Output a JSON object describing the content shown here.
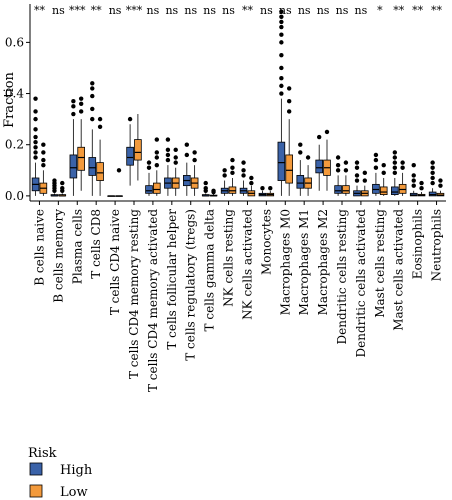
{
  "chart_data": {
    "type": "boxplot",
    "ylabel": "Fraction",
    "ylim": [
      -0.02,
      0.75
    ],
    "yticks": [
      0.0,
      0.2,
      0.4,
      0.6
    ],
    "ytick_labels": [
      "0.0",
      "0.2",
      "0.4",
      "0.6"
    ],
    "legend": {
      "title": "Risk",
      "placement": "bottom-left",
      "items": [
        {
          "label": "High",
          "color": "#3a62a8"
        },
        {
          "label": "Low",
          "color": "#f39a3c"
        }
      ]
    },
    "groups": [
      {
        "name": "High",
        "color": "#3a62a8"
      },
      {
        "name": "Low",
        "color": "#f39a3c"
      }
    ],
    "categories": [
      {
        "label": "B cells naive",
        "sig": "**",
        "high": {
          "min": 0.0,
          "q1": 0.02,
          "median": 0.045,
          "q3": 0.07,
          "max": 0.13,
          "outliers": [
            0.15,
            0.17,
            0.19,
            0.21,
            0.23,
            0.26,
            0.3,
            0.33,
            0.38
          ]
        },
        "low": {
          "min": 0.0,
          "q1": 0.01,
          "median": 0.03,
          "q3": 0.05,
          "max": 0.1,
          "outliers": [
            0.12,
            0.14,
            0.17,
            0.2
          ]
        }
      },
      {
        "label": "B cells memory",
        "sig": "ns",
        "high": {
          "min": 0.0,
          "q1": 0.0,
          "median": 0.0,
          "q3": 0.005,
          "max": 0.01,
          "outliers": [
            0.02,
            0.03,
            0.04,
            0.05,
            0.06
          ]
        },
        "low": {
          "min": 0.0,
          "q1": 0.0,
          "median": 0.0,
          "q3": 0.005,
          "max": 0.01,
          "outliers": [
            0.02,
            0.03,
            0.05
          ]
        }
      },
      {
        "label": "Plasma cells",
        "sig": "***",
        "high": {
          "min": 0.0,
          "q1": 0.07,
          "median": 0.11,
          "q3": 0.16,
          "max": 0.3,
          "outliers": [
            0.32,
            0.35,
            0.37
          ]
        },
        "low": {
          "min": 0.02,
          "q1": 0.1,
          "median": 0.15,
          "q3": 0.19,
          "max": 0.3,
          "outliers": [
            0.33,
            0.36,
            0.38
          ]
        }
      },
      {
        "label": "T cells CD8",
        "sig": "**",
        "high": {
          "min": 0.0,
          "q1": 0.08,
          "median": 0.11,
          "q3": 0.15,
          "max": 0.26,
          "outliers": [
            0.3,
            0.34,
            0.39,
            0.42,
            0.44
          ]
        },
        "low": {
          "min": 0.0,
          "q1": 0.06,
          "median": 0.09,
          "q3": 0.13,
          "max": 0.22,
          "outliers": [
            0.27,
            0.3
          ]
        }
      },
      {
        "label": "T cells CD4 naive",
        "sig": "ns",
        "high": {
          "min": 0.0,
          "q1": 0.0,
          "median": 0.0,
          "q3": 0.0,
          "max": 0.0,
          "outliers": []
        },
        "low": {
          "min": 0.0,
          "q1": 0.0,
          "median": 0.0,
          "q3": 0.0,
          "max": 0.0,
          "outliers": [
            0.1
          ]
        }
      },
      {
        "label": "T cells CD4 memory resting",
        "sig": "***",
        "high": {
          "min": 0.04,
          "q1": 0.12,
          "median": 0.15,
          "q3": 0.19,
          "max": 0.28,
          "outliers": [
            0.3
          ]
        },
        "low": {
          "min": 0.06,
          "q1": 0.14,
          "median": 0.17,
          "q3": 0.22,
          "max": 0.32,
          "outliers": []
        }
      },
      {
        "label": "T cells CD4 memory activated",
        "sig": "ns",
        "high": {
          "min": 0.0,
          "q1": 0.01,
          "median": 0.02,
          "q3": 0.04,
          "max": 0.09,
          "outliers": [
            0.11,
            0.13
          ]
        },
        "low": {
          "min": 0.0,
          "q1": 0.01,
          "median": 0.025,
          "q3": 0.05,
          "max": 0.1,
          "outliers": [
            0.12,
            0.15,
            0.17,
            0.22
          ]
        }
      },
      {
        "label": "T cells follicular helper",
        "sig": "ns",
        "high": {
          "min": 0.0,
          "q1": 0.03,
          "median": 0.05,
          "q3": 0.07,
          "max": 0.12,
          "outliers": [
            0.14,
            0.16,
            0.18,
            0.22
          ]
        },
        "low": {
          "min": 0.0,
          "q1": 0.03,
          "median": 0.05,
          "q3": 0.07,
          "max": 0.11,
          "outliers": [
            0.13,
            0.15,
            0.18
          ]
        }
      },
      {
        "label": "T cells regulatory (tregs)",
        "sig": "ns",
        "high": {
          "min": 0.0,
          "q1": 0.04,
          "median": 0.06,
          "q3": 0.08,
          "max": 0.13,
          "outliers": [
            0.16,
            0.2
          ]
        },
        "low": {
          "min": 0.0,
          "q1": 0.03,
          "median": 0.05,
          "q3": 0.07,
          "max": 0.12,
          "outliers": [
            0.14,
            0.17
          ]
        }
      },
      {
        "label": "T cells gamma delta",
        "sig": "ns",
        "high": {
          "min": 0.0,
          "q1": 0.0,
          "median": 0.0,
          "q3": 0.005,
          "max": 0.01,
          "outliers": [
            0.02,
            0.03,
            0.05
          ]
        },
        "low": {
          "min": 0.0,
          "q1": 0.0,
          "median": 0.0,
          "q3": 0.003,
          "max": 0.008,
          "outliers": [
            0.015,
            0.02
          ]
        }
      },
      {
        "label": "NK cells resting",
        "sig": "ns",
        "high": {
          "min": 0.0,
          "q1": 0.01,
          "median": 0.02,
          "q3": 0.03,
          "max": 0.06,
          "outliers": [
            0.08,
            0.1
          ]
        },
        "low": {
          "min": 0.0,
          "q1": 0.01,
          "median": 0.02,
          "q3": 0.035,
          "max": 0.07,
          "outliers": [
            0.09,
            0.11,
            0.14
          ]
        }
      },
      {
        "label": "NK cells activated",
        "sig": "**",
        "high": {
          "min": 0.0,
          "q1": 0.01,
          "median": 0.02,
          "q3": 0.03,
          "max": 0.06,
          "outliers": [
            0.08,
            0.1,
            0.13
          ]
        },
        "low": {
          "min": 0.0,
          "q1": 0.0,
          "median": 0.01,
          "q3": 0.02,
          "max": 0.04,
          "outliers": [
            0.05,
            0.07
          ]
        }
      },
      {
        "label": "Monocytes",
        "sig": "ns",
        "high": {
          "min": 0.0,
          "q1": 0.0,
          "median": 0.005,
          "q3": 0.01,
          "max": 0.02,
          "outliers": [
            0.03
          ]
        },
        "low": {
          "min": 0.0,
          "q1": 0.0,
          "median": 0.005,
          "q3": 0.01,
          "max": 0.02,
          "outliers": [
            0.03
          ]
        }
      },
      {
        "label": "Macrophages M0",
        "sig": "ns",
        "high": {
          "min": 0.0,
          "q1": 0.06,
          "median": 0.13,
          "q3": 0.21,
          "max": 0.38,
          "outliers": [
            0.4,
            0.43,
            0.46,
            0.5,
            0.55,
            0.6,
            0.63,
            0.66,
            0.68,
            0.7,
            0.72
          ]
        },
        "low": {
          "min": 0.0,
          "q1": 0.05,
          "median": 0.1,
          "q3": 0.16,
          "max": 0.3,
          "outliers": [
            0.33,
            0.37,
            0.42
          ]
        }
      },
      {
        "label": "Macrophages M1",
        "sig": "ns",
        "high": {
          "min": 0.0,
          "q1": 0.03,
          "median": 0.05,
          "q3": 0.08,
          "max": 0.14,
          "outliers": [
            0.17,
            0.2
          ]
        },
        "low": {
          "min": 0.0,
          "q1": 0.03,
          "median": 0.05,
          "q3": 0.07,
          "max": 0.12,
          "outliers": [
            0.15
          ]
        }
      },
      {
        "label": "Macrophages M2",
        "sig": "ns",
        "high": {
          "min": 0.02,
          "q1": 0.09,
          "median": 0.11,
          "q3": 0.14,
          "max": 0.2,
          "outliers": [
            0.23
          ]
        },
        "low": {
          "min": 0.02,
          "q1": 0.08,
          "median": 0.11,
          "q3": 0.14,
          "max": 0.22,
          "outliers": [
            0.25
          ]
        }
      },
      {
        "label": "Dendritic cells resting",
        "sig": "ns",
        "high": {
          "min": 0.0,
          "q1": 0.01,
          "median": 0.02,
          "q3": 0.04,
          "max": 0.08,
          "outliers": [
            0.1,
            0.12,
            0.15
          ]
        },
        "low": {
          "min": 0.0,
          "q1": 0.01,
          "median": 0.02,
          "q3": 0.04,
          "max": 0.08,
          "outliers": [
            0.1,
            0.13
          ]
        }
      },
      {
        "label": "Dendritic cells activated",
        "sig": "ns",
        "high": {
          "min": 0.0,
          "q1": 0.0,
          "median": 0.01,
          "q3": 0.02,
          "max": 0.04,
          "outliers": [
            0.06,
            0.08,
            0.11,
            0.13
          ]
        },
        "low": {
          "min": 0.0,
          "q1": 0.0,
          "median": 0.01,
          "q3": 0.02,
          "max": 0.04,
          "outliers": [
            0.06,
            0.09
          ]
        }
      },
      {
        "label": "Mast cells resting",
        "sig": "*",
        "high": {
          "min": 0.0,
          "q1": 0.01,
          "median": 0.025,
          "q3": 0.045,
          "max": 0.09,
          "outliers": [
            0.11,
            0.14,
            0.16
          ]
        },
        "low": {
          "min": 0.0,
          "q1": 0.005,
          "median": 0.015,
          "q3": 0.035,
          "max": 0.07,
          "outliers": [
            0.09,
            0.12
          ]
        }
      },
      {
        "label": "Mast cells activated",
        "sig": "**",
        "high": {
          "min": 0.0,
          "q1": 0.005,
          "median": 0.015,
          "q3": 0.035,
          "max": 0.07,
          "outliers": [
            0.09,
            0.11,
            0.13,
            0.15,
            0.17
          ]
        },
        "low": {
          "min": 0.0,
          "q1": 0.01,
          "median": 0.025,
          "q3": 0.045,
          "max": 0.09,
          "outliers": [
            0.11,
            0.13
          ]
        }
      },
      {
        "label": "Eosinophils",
        "sig": "**",
        "high": {
          "min": 0.0,
          "q1": 0.0,
          "median": 0.003,
          "q3": 0.01,
          "max": 0.02,
          "outliers": [
            0.04,
            0.06,
            0.08,
            0.12
          ]
        },
        "low": {
          "min": 0.0,
          "q1": 0.0,
          "median": 0.002,
          "q3": 0.006,
          "max": 0.015,
          "outliers": [
            0.03,
            0.05
          ]
        }
      },
      {
        "label": "Neutrophils",
        "sig": "**",
        "high": {
          "min": 0.0,
          "q1": 0.0,
          "median": 0.005,
          "q3": 0.015,
          "max": 0.03,
          "outliers": [
            0.05,
            0.07,
            0.09,
            0.11,
            0.13
          ]
        },
        "low": {
          "min": 0.0,
          "q1": 0.0,
          "median": 0.003,
          "q3": 0.01,
          "max": 0.02,
          "outliers": [
            0.04,
            0.06
          ]
        }
      }
    ]
  }
}
